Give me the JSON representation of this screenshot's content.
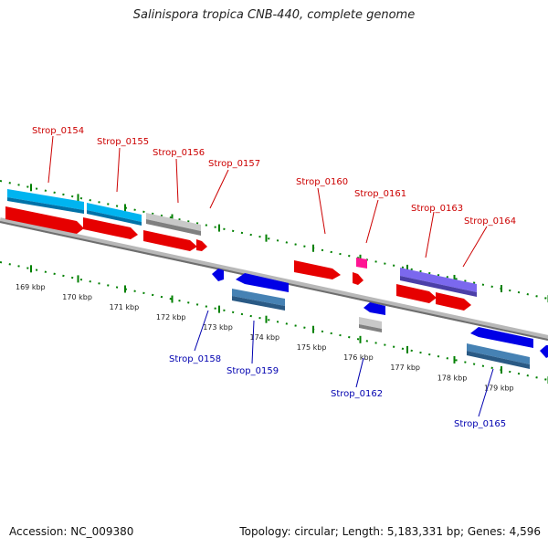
{
  "title": "Salinispora tropica CNB-440, complete genome",
  "footer": {
    "accession": "Accession: NC_009380",
    "stats": "Topology: circular; Length: 5,183,331 bp; Genes: 4,596"
  },
  "colors": {
    "forward_cds": "#e60000",
    "reverse_cds": "#0000e6",
    "forward_label": "#cc0000",
    "reverse_label": "#0000b0",
    "other_gene_blue": "#00b4f0",
    "pseudogene_gray": "#c0c0c0",
    "rna_pink": "#ff1493",
    "gene_purple": "#7b68ee",
    "steel_blue": "#4682b4",
    "backbone": "#808080",
    "tick_green": "#008000"
  },
  "kbp_labels": [
    "169 kbp",
    "170 kbp",
    "171 kbp",
    "172 kbp",
    "173 kbp",
    "174 kbp",
    "175 kbp",
    "176 kbp",
    "177 kbp",
    "178 kbp",
    "179 kbp"
  ],
  "forward_genes": [
    "Strop_0154",
    "Strop_0155",
    "Strop_0156",
    "Strop_0157",
    "Strop_0160",
    "Strop_0161",
    "Strop_0163",
    "Strop_0164"
  ],
  "reverse_genes": [
    "Strop_0158",
    "Strop_0159",
    "Strop_0162",
    "Strop_0165"
  ]
}
